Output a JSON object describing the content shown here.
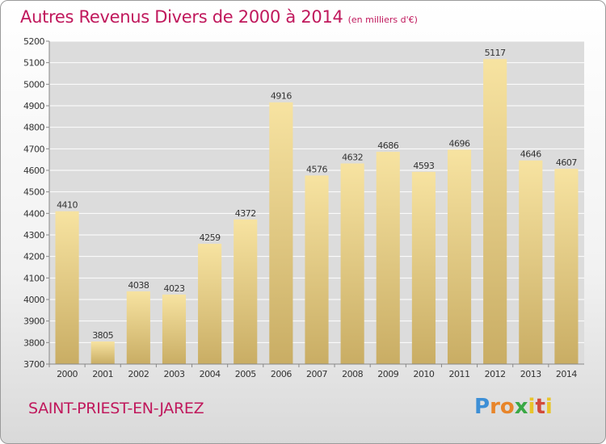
{
  "chart_data": {
    "type": "bar",
    "title": "Autres Revenus Divers de 2000 à 2014",
    "subtitle": "(en milliers d'€)",
    "xlabel": "",
    "ylabel": "",
    "categories": [
      "2000",
      "2001",
      "2002",
      "2003",
      "2004",
      "2005",
      "2006",
      "2007",
      "2008",
      "2009",
      "2010",
      "2011",
      "2012",
      "2013",
      "2014"
    ],
    "values": [
      4410,
      3805,
      4038,
      4023,
      4259,
      4372,
      4916,
      4576,
      4632,
      4686,
      4593,
      4696,
      5117,
      4646,
      4607
    ],
    "ylim": [
      3700,
      5200
    ],
    "yticks": [
      3700,
      3800,
      3900,
      4000,
      4100,
      4200,
      4300,
      4400,
      4500,
      4600,
      4700,
      4800,
      4900,
      5000,
      5100,
      5200
    ],
    "grid": true,
    "legend": "none",
    "bar_color": "#e2c77e",
    "bar_color_light": "#f7e3a1",
    "bar_color_dark": "#c9ad64",
    "grid_color": "#ffffff",
    "plot_background": "#dcdcdc"
  },
  "footer": {
    "city": "SAINT-PRIEST-EN-JAREZ",
    "brand": "Proxiti"
  }
}
